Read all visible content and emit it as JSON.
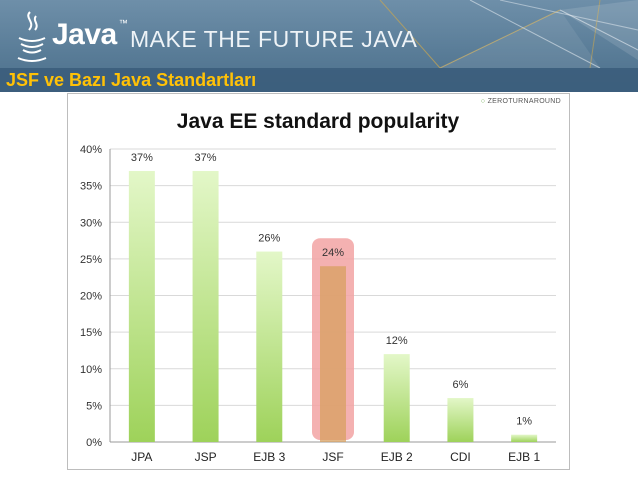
{
  "header": {
    "brand": "Java",
    "brand_tm": "™",
    "tagline": "MAKE THE FUTURE JAVA"
  },
  "slide": {
    "title": "JSF ve Bazı Java Standartları"
  },
  "watermark": {
    "icon": "○",
    "text": "ZEROTURNAROUND"
  },
  "colors": {
    "bar_top": "#e3f7c8",
    "bar_bottom": "#9ed25a",
    "highlight_fill": "#f2a3a3",
    "highlight_bar": "#d8a060",
    "grid": "#d9d9d9",
    "header_bg": "#5a7d98",
    "title_yellow": "#ffc107"
  },
  "chart_data": {
    "type": "bar",
    "title": "Java EE standard popularity",
    "categories": [
      "JPA",
      "JSP",
      "EJB 3",
      "JSF",
      "EJB 2",
      "CDI",
      "EJB 1"
    ],
    "values": [
      37,
      37,
      26,
      24,
      12,
      6,
      1
    ],
    "value_labels": [
      "37%",
      "37%",
      "26%",
      "24%",
      "12%",
      "6%",
      "1%"
    ],
    "highlighted_category": "JSF",
    "yticks": [
      "0%",
      "5%",
      "10%",
      "15%",
      "20%",
      "25%",
      "30%",
      "35%",
      "40%"
    ],
    "ylim": [
      0,
      40
    ],
    "xlabel": "",
    "ylabel": "",
    "grid": true
  }
}
